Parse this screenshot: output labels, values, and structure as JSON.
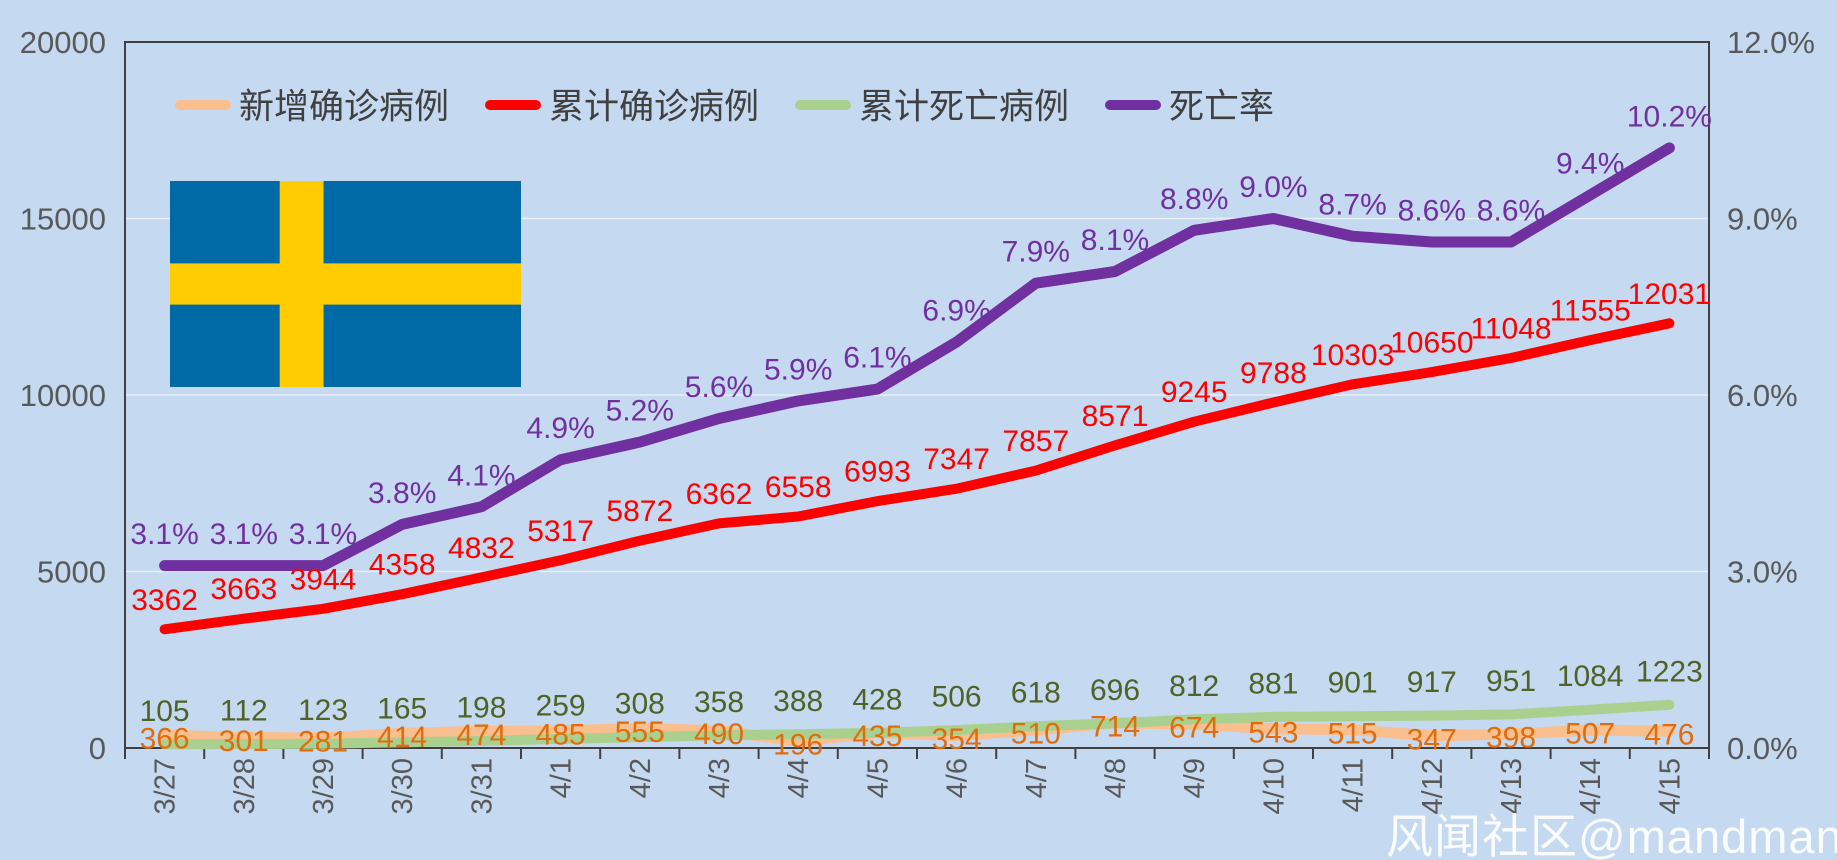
{
  "chart_data": {
    "type": "line",
    "title": "",
    "categories": [
      "3/27",
      "3/28",
      "3/29",
      "3/30",
      "3/31",
      "4/1",
      "4/2",
      "4/3",
      "4/4",
      "4/5",
      "4/6",
      "4/7",
      "4/8",
      "4/9",
      "4/10",
      "4/11",
      "4/12",
      "4/13",
      "4/14",
      "4/15"
    ],
    "series": [
      {
        "key": "new-cases",
        "name": "新增确诊病例",
        "axis": "left",
        "unit": "",
        "line_color": "#fabf8f",
        "label_color": "#e26b0a",
        "values": [
          366,
          301,
          281,
          414,
          474,
          485,
          555,
          490,
          196,
          435,
          354,
          510,
          714,
          674,
          543,
          515,
          347,
          398,
          507,
          476
        ]
      },
      {
        "key": "total-cases",
        "name": "累计确诊病例",
        "axis": "left",
        "unit": "",
        "line_color": "#ff0000",
        "label_color": "#ff0000",
        "values": [
          3362,
          3663,
          3944,
          4358,
          4832,
          5317,
          5872,
          6362,
          6558,
          6993,
          7347,
          7857,
          8571,
          9245,
          9788,
          10303,
          10650,
          11048,
          11555,
          12031
        ]
      },
      {
        "key": "total-deaths",
        "name": "累计死亡病例",
        "axis": "left",
        "unit": "",
        "line_color": "#a9d08e",
        "label_color": "#4f6228",
        "values": [
          105,
          112,
          123,
          165,
          198,
          259,
          308,
          358,
          388,
          428,
          506,
          618,
          696,
          812,
          881,
          901,
          917,
          951,
          1084,
          1223
        ]
      },
      {
        "key": "death-rate",
        "name": "死亡率",
        "axis": "right",
        "unit": "%",
        "line_color": "#7030a0",
        "label_color": "#7030a0",
        "values": [
          3.1,
          3.1,
          3.1,
          3.8,
          4.1,
          4.9,
          5.2,
          5.6,
          5.9,
          6.1,
          6.9,
          7.9,
          8.1,
          8.8,
          9.0,
          8.7,
          8.6,
          8.6,
          9.4,
          10.2
        ]
      }
    ],
    "left_axis": {
      "min": 0,
      "max": 20000,
      "tick_labels": [
        "20000",
        "15000",
        "10000",
        "5000",
        "0"
      ]
    },
    "right_axis": {
      "min": 0,
      "max": 12,
      "tick_labels": [
        "12.0%",
        "9.0%",
        "6.0%",
        "3.0%",
        "0.0%"
      ]
    },
    "x_axis": {
      "labels_rotated_90": true
    },
    "legend_position": "top",
    "grid": true
  },
  "flag": {
    "country": "sweden",
    "blue": "#006aa7",
    "yellow": "#fecc00"
  },
  "watermark": {
    "text": "风闻社区@mandman"
  },
  "colors": {
    "background": "#c5d9f1",
    "plot_border": "#404040",
    "grid_line": "#e9eef7",
    "axis_text": "#595959",
    "legend_text": "#404040",
    "tick": "#404040"
  }
}
